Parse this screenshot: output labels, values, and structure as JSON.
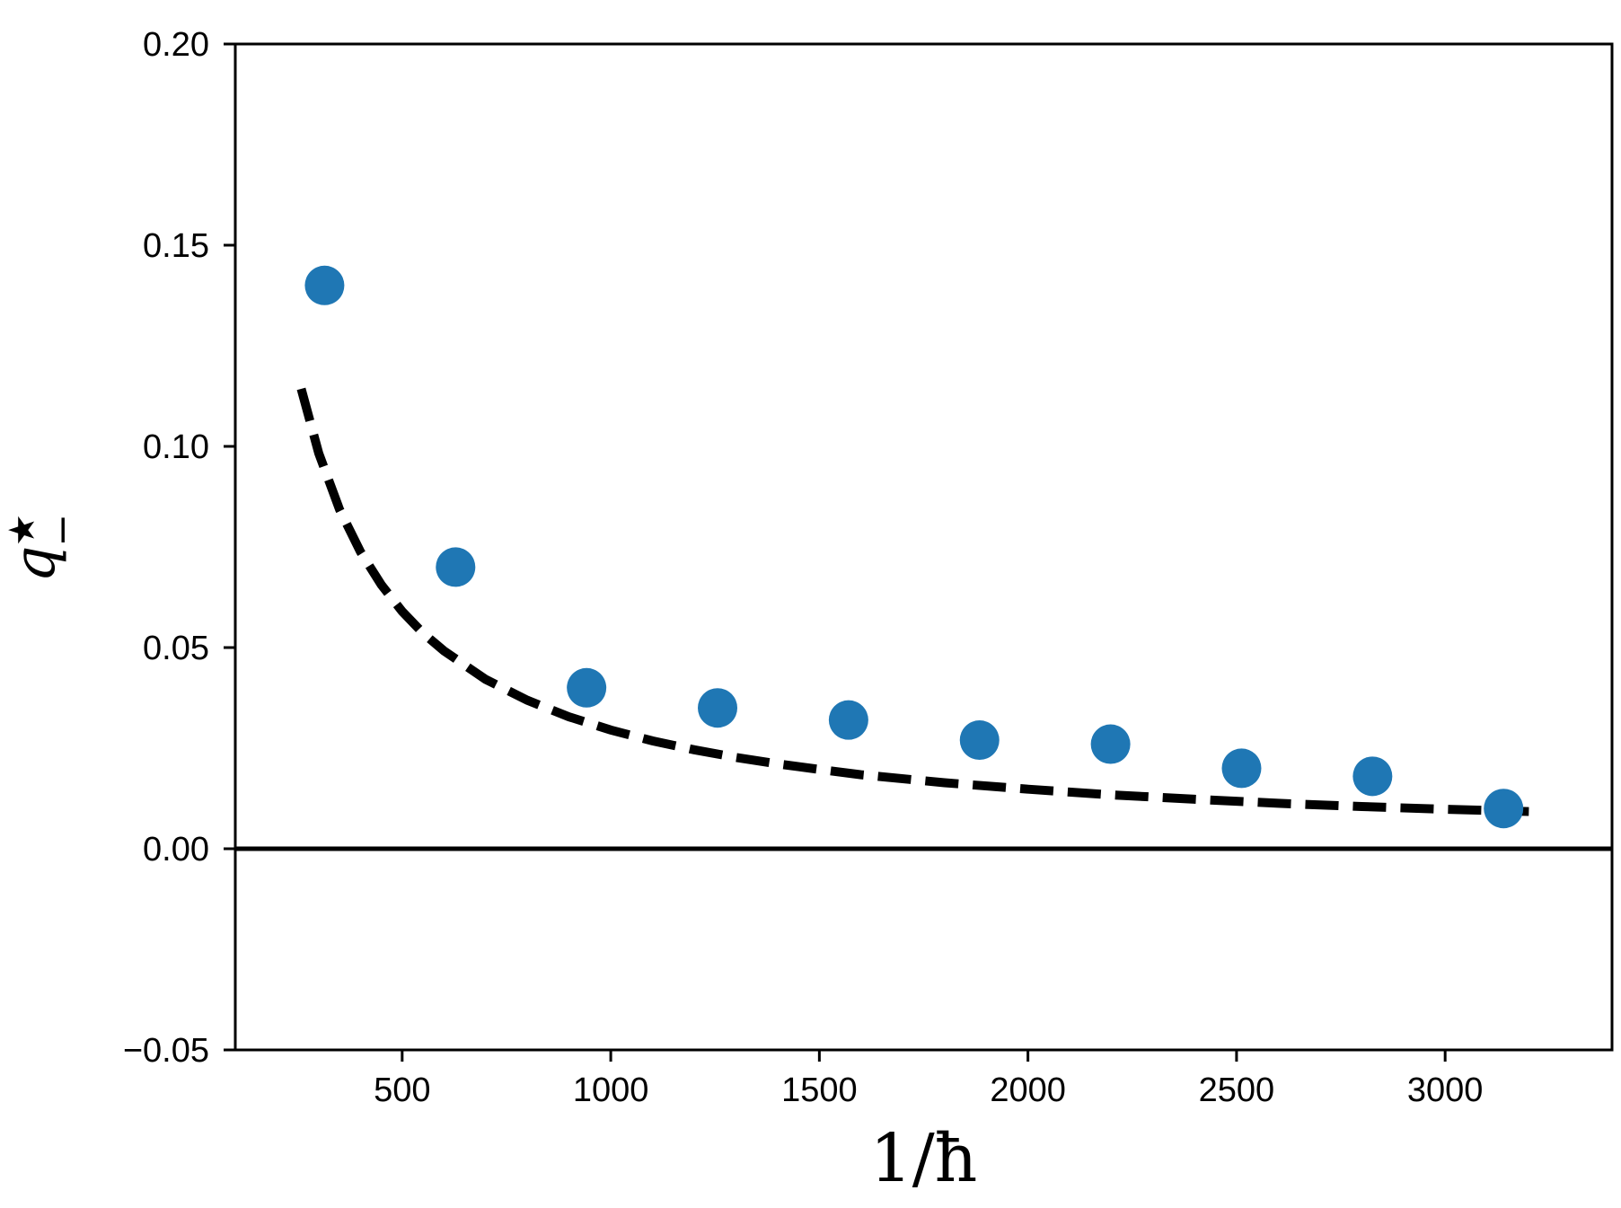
{
  "chart_data": {
    "type": "scatter",
    "title": "",
    "xlabel": "1/ħ",
    "ylabel": "q",
    "ylabel_superscript": "★",
    "ylabel_subscript": "−",
    "xlim": [
      100,
      3400
    ],
    "ylim": [
      -0.05,
      0.2
    ],
    "x_ticks": [
      500,
      1000,
      1500,
      2000,
      2500,
      3000
    ],
    "x_tick_labels": [
      "500",
      "1000",
      "1500",
      "2000",
      "2500",
      "3000"
    ],
    "y_ticks": [
      -0.05,
      0.0,
      0.05,
      0.1,
      0.15,
      0.2
    ],
    "y_tick_labels": [
      "−0.05",
      "0.00",
      "0.05",
      "0.10",
      "0.15",
      "0.20"
    ],
    "grid": false,
    "legend": "none",
    "reference_line_y": 0,
    "series": [
      {
        "kind": "points",
        "color": "#1f77b4",
        "x": [
          314,
          628,
          942,
          1256,
          1570,
          1884,
          2198,
          2512,
          2826,
          3140
        ],
        "y": [
          0.14,
          0.07,
          0.04,
          0.035,
          0.032,
          0.027,
          0.026,
          0.02,
          0.018,
          0.01
        ]
      },
      {
        "kind": "fit",
        "color": "#000000",
        "line_style": "dashed",
        "function": "y = 29.5 / x",
        "x_range": [
          258,
          3220
        ],
        "x": [
          258,
          300,
          350,
          400,
          450,
          500,
          550,
          600,
          700,
          800,
          900,
          1000,
          1100,
          1200,
          1300,
          1400,
          1500,
          1600,
          1800,
          2000,
          2200,
          2400,
          2600,
          2800,
          3000,
          3220
        ],
        "y": [
          0.1143,
          0.0983,
          0.0843,
          0.0738,
          0.0656,
          0.059,
          0.0536,
          0.0492,
          0.0421,
          0.0369,
          0.0328,
          0.0295,
          0.0268,
          0.0246,
          0.0227,
          0.0211,
          0.0197,
          0.0184,
          0.0164,
          0.0148,
          0.0134,
          0.0123,
          0.0113,
          0.0105,
          0.0098,
          0.0092
        ]
      }
    ]
  }
}
